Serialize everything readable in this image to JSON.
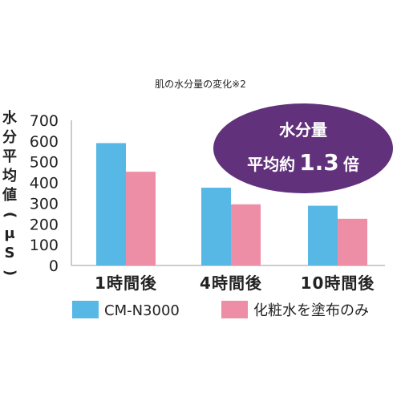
{
  "chart_data": {
    "type": "bar",
    "title": "肌の水分量の変化※2",
    "ylabel": "水分平均値(μS)",
    "xlabel": "",
    "ylim": [
      0,
      700
    ],
    "yticks": [
      0,
      100,
      200,
      300,
      400,
      500,
      600,
      700
    ],
    "categories": [
      "1時間後",
      "4時間後",
      "10時間後"
    ],
    "series": [
      {
        "name": "CM-N3000",
        "color": "#57b8e6",
        "values": [
          590,
          375,
          288
        ]
      },
      {
        "name": "化粧水を塗布のみ",
        "color": "#ee8ea6",
        "values": [
          452,
          295,
          225
        ]
      }
    ],
    "grid": false,
    "legend": "bottom",
    "annotation": {
      "line1": "水分量",
      "line2_prefix": "平均約",
      "line2_value": "1.3",
      "line2_suffix": "倍",
      "color": "#62317c"
    }
  }
}
